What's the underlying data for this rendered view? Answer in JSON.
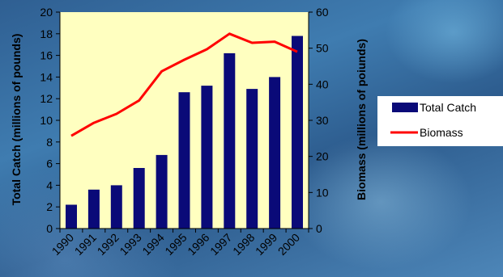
{
  "chart_data": {
    "type": "bar+line",
    "categories": [
      "1990",
      "1991",
      "1992",
      "1993",
      "1994",
      "1995",
      "1996",
      "1997",
      "1998",
      "1999",
      "2000"
    ],
    "series": [
      {
        "name": "Total Catch",
        "type": "bar",
        "axis": "left",
        "color": "#0a0a78",
        "values": [
          2.2,
          3.6,
          4.0,
          5.6,
          6.8,
          12.6,
          13.2,
          16.2,
          12.9,
          14.0,
          17.8
        ]
      },
      {
        "name": "Biomass",
        "type": "line",
        "axis": "right",
        "color": "#ff0000",
        "values": [
          25.7,
          29.3,
          31.8,
          35.5,
          43.6,
          46.8,
          49.7,
          54.0,
          51.5,
          51.8,
          49.0
        ]
      }
    ],
    "ylabel_left": "Total Catch (millions of pounds)",
    "ylabel_right": "Biomass (millions of poiunds)",
    "ylim_left": [
      0,
      20
    ],
    "ylim_right": [
      0,
      60
    ],
    "yticks_left": [
      "0",
      "2",
      "4",
      "6",
      "8",
      "10",
      "12",
      "14",
      "16",
      "18",
      "20"
    ],
    "yticks_right": [
      "0",
      "10",
      "20",
      "30",
      "40",
      "50",
      "60"
    ],
    "plot_background": "#ffffc0",
    "grid": false,
    "legend_position": "right"
  }
}
